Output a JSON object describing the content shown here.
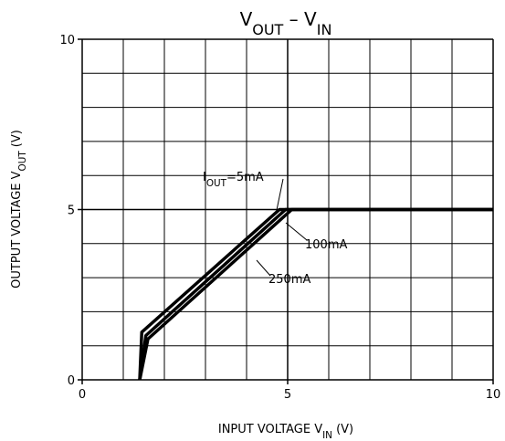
{
  "chart_data": {
    "type": "line",
    "title": [
      {
        "text": "V"
      },
      {
        "text": "OUT",
        "sub": true
      },
      {
        "text": " – "
      },
      {
        "text": "V"
      },
      {
        "text": "IN",
        "sub": true
      }
    ],
    "x_label": [
      {
        "text": "INPUT VOLTAGE   V"
      },
      {
        "text": "IN",
        "sub": true
      },
      {
        "text": "   (V)"
      }
    ],
    "y_label": [
      {
        "text": "OUTPUT VOLTAGE   V"
      },
      {
        "text": "OUT",
        "sub": true
      },
      {
        "text": "   (V)"
      }
    ],
    "xlim": [
      0,
      10
    ],
    "ylim": [
      0,
      10
    ],
    "xticks": [
      0,
      5,
      10
    ],
    "yticks": [
      0,
      5,
      10
    ],
    "minor_xticks": [
      1,
      2,
      3,
      4,
      6,
      7,
      8,
      9
    ],
    "minor_yticks": [
      1,
      2,
      3,
      4,
      6,
      7,
      8,
      9
    ],
    "grid": true,
    "color": "#000000",
    "series": [
      {
        "x": [
          1.4,
          1.45,
          4.8,
          10
        ],
        "values": [
          0,
          1.4,
          5,
          5
        ]
      },
      {
        "x": [
          1.4,
          1.55,
          4.95,
          10
        ],
        "values": [
          0,
          1.3,
          5,
          5
        ]
      },
      {
        "x": [
          1.4,
          1.6,
          5.1,
          10
        ],
        "values": [
          0,
          1.2,
          5,
          5
        ]
      }
    ],
    "annotations": [
      [
        {
          "text": "I"
        },
        {
          "text": "OUT",
          "sub": true
        },
        {
          "text": "=5mA"
        }
      ],
      [
        {
          "text": "100mA"
        }
      ],
      [
        {
          "text": "250mA"
        }
      ]
    ]
  }
}
